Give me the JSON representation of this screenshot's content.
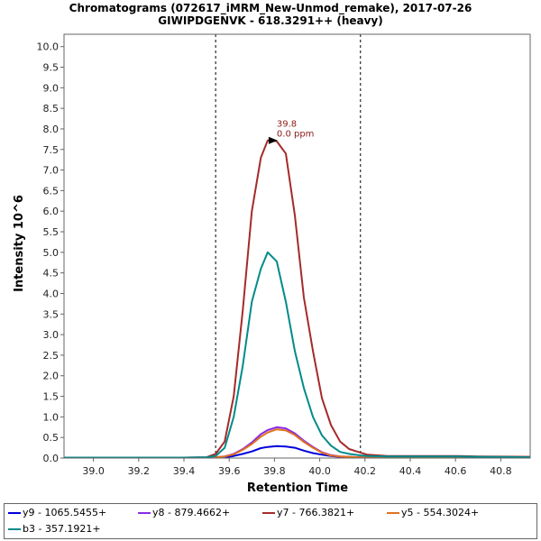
{
  "chart_data": {
    "type": "line",
    "title": "Chromatograms (072617_iMRM_New-Unmod_remake), 2017-07-26",
    "subtitle": "GIWIPDGENVK - 618.3291++ (heavy)",
    "xlabel": "Retention Time",
    "ylabel": "Intensity 10^6",
    "xlim": [
      38.87,
      40.93
    ],
    "ylim": [
      0,
      10.3
    ],
    "xticks": [
      "39.0",
      "39.2",
      "39.4",
      "39.6",
      "39.8",
      "40.0",
      "40.2",
      "40.4",
      "40.6",
      "40.8"
    ],
    "yticks": [
      "0.0",
      "0.5",
      "1.0",
      "1.5",
      "2.0",
      "2.5",
      "3.0",
      "3.5",
      "4.0",
      "4.5",
      "5.0",
      "5.5",
      "6.0",
      "6.5",
      "7.0",
      "7.5",
      "8.0",
      "8.5",
      "9.0",
      "9.5",
      "10.0"
    ],
    "integration_bounds": [
      39.54,
      40.18
    ],
    "peak_annotation": {
      "x": 39.81,
      "y": 7.72,
      "rt_label": "39.8",
      "ppm_label": "0.0 ppm"
    },
    "x": [
      38.87,
      39.0,
      39.2,
      39.4,
      39.5,
      39.54,
      39.58,
      39.62,
      39.66,
      39.7,
      39.74,
      39.77,
      39.81,
      39.85,
      39.89,
      39.93,
      39.97,
      40.01,
      40.05,
      40.09,
      40.13,
      40.17,
      40.21,
      40.3,
      40.4,
      40.5,
      40.6,
      40.7,
      40.93
    ],
    "series": [
      {
        "name": "y9 - 1065.5455+",
        "color": "#0000dd",
        "values": [
          0.01,
          0.01,
          0.01,
          0.01,
          0.01,
          0.01,
          0.02,
          0.05,
          0.1,
          0.16,
          0.24,
          0.27,
          0.29,
          0.28,
          0.25,
          0.18,
          0.12,
          0.08,
          0.05,
          0.03,
          0.02,
          0.02,
          0.01,
          0.01,
          0.01,
          0.01,
          0.01,
          0.01,
          0.01
        ]
      },
      {
        "name": "y8 - 879.4662+",
        "color": "#8a2be2",
        "values": [
          0.01,
          0.01,
          0.01,
          0.01,
          0.01,
          0.02,
          0.04,
          0.1,
          0.22,
          0.38,
          0.58,
          0.68,
          0.75,
          0.72,
          0.6,
          0.42,
          0.27,
          0.14,
          0.07,
          0.04,
          0.03,
          0.02,
          0.01,
          0.01,
          0.01,
          0.01,
          0.01,
          0.01,
          0.01
        ]
      },
      {
        "name": "y7 - 766.3821+",
        "color": "#a52a2a",
        "values": [
          0.01,
          0.01,
          0.01,
          0.01,
          0.02,
          0.1,
          0.4,
          1.5,
          3.6,
          6.0,
          7.3,
          7.72,
          7.7,
          7.4,
          5.9,
          3.9,
          2.6,
          1.45,
          0.8,
          0.4,
          0.22,
          0.15,
          0.08,
          0.05,
          0.05,
          0.05,
          0.05,
          0.04,
          0.03
        ]
      },
      {
        "name": "y5 - 554.3024+",
        "color": "#e07020",
        "values": [
          0.01,
          0.01,
          0.01,
          0.01,
          0.01,
          0.02,
          0.04,
          0.09,
          0.2,
          0.34,
          0.52,
          0.62,
          0.7,
          0.67,
          0.56,
          0.39,
          0.25,
          0.13,
          0.06,
          0.04,
          0.03,
          0.02,
          0.01,
          0.01,
          0.01,
          0.01,
          0.01,
          0.01,
          0.01
        ]
      },
      {
        "name": "b3 - 357.1921+",
        "color": "#008b8b",
        "values": [
          0.01,
          0.01,
          0.01,
          0.01,
          0.02,
          0.05,
          0.25,
          1.0,
          2.25,
          3.8,
          4.6,
          5.0,
          4.78,
          3.8,
          2.6,
          1.7,
          1.0,
          0.55,
          0.3,
          0.15,
          0.1,
          0.07,
          0.05,
          0.04,
          0.04,
          0.04,
          0.04,
          0.03,
          0.02
        ]
      }
    ]
  }
}
